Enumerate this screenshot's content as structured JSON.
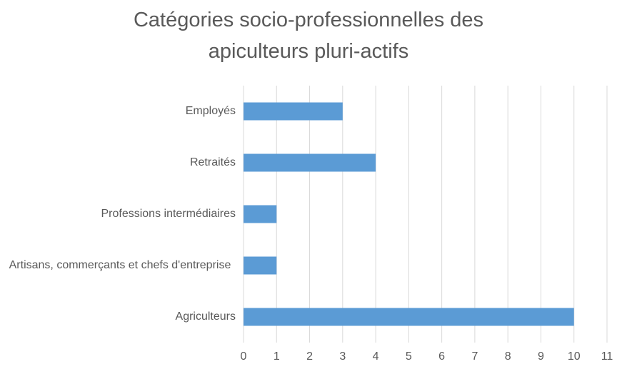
{
  "chart_data": {
    "type": "hbar",
    "title": "Catégories socio-professionnelles des apiculteurs pluri-actifs",
    "categories": [
      "Employés",
      "Retraités",
      "Professions intermédiaires",
      "Artisans, commerçants et chefs d'entreprise",
      "Agriculteurs"
    ],
    "values": [
      3,
      4,
      1,
      1,
      10
    ],
    "color": "#5b9bd5",
    "xlim": [
      0,
      11
    ],
    "xticks": [
      0,
      1,
      2,
      3,
      4,
      5,
      6,
      7,
      8,
      9,
      10,
      11
    ],
    "grid": true
  }
}
